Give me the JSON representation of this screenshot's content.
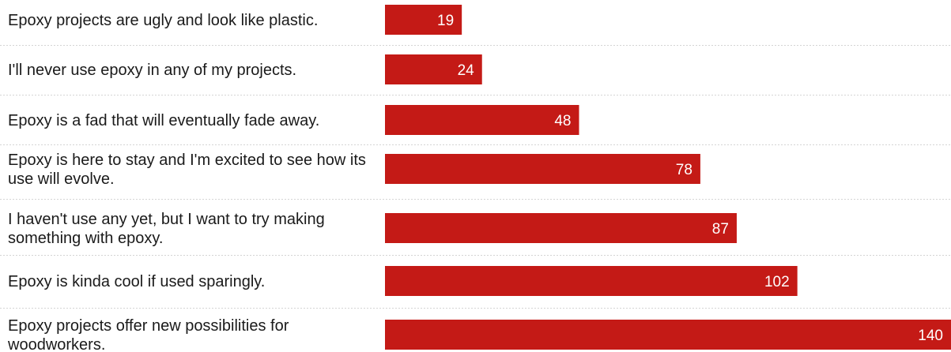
{
  "chart_data": {
    "type": "bar",
    "orientation": "horizontal",
    "categories": [
      "Epoxy projects are ugly and look like plastic.",
      "I'll never use epoxy in any of my projects.",
      "Epoxy is a fad that will eventually fade away.",
      "Epoxy is here to stay and I'm excited to see how its use will evolve.",
      "I haven't use any yet, but I want to try making something with epoxy.",
      "Epoxy is kinda cool if used sparingly.",
      "Epoxy projects offer new possibilities for woodworkers."
    ],
    "values": [
      19,
      24,
      48,
      78,
      87,
      102,
      140
    ],
    "value_labels": [
      "19",
      "24",
      "48",
      "78",
      "87",
      "102",
      "140"
    ],
    "xlim": [
      0,
      140
    ],
    "grid": false,
    "bar_color": "#c41a16",
    "label_color": "#1a1a1a",
    "value_label_color": "#ffffff"
  }
}
